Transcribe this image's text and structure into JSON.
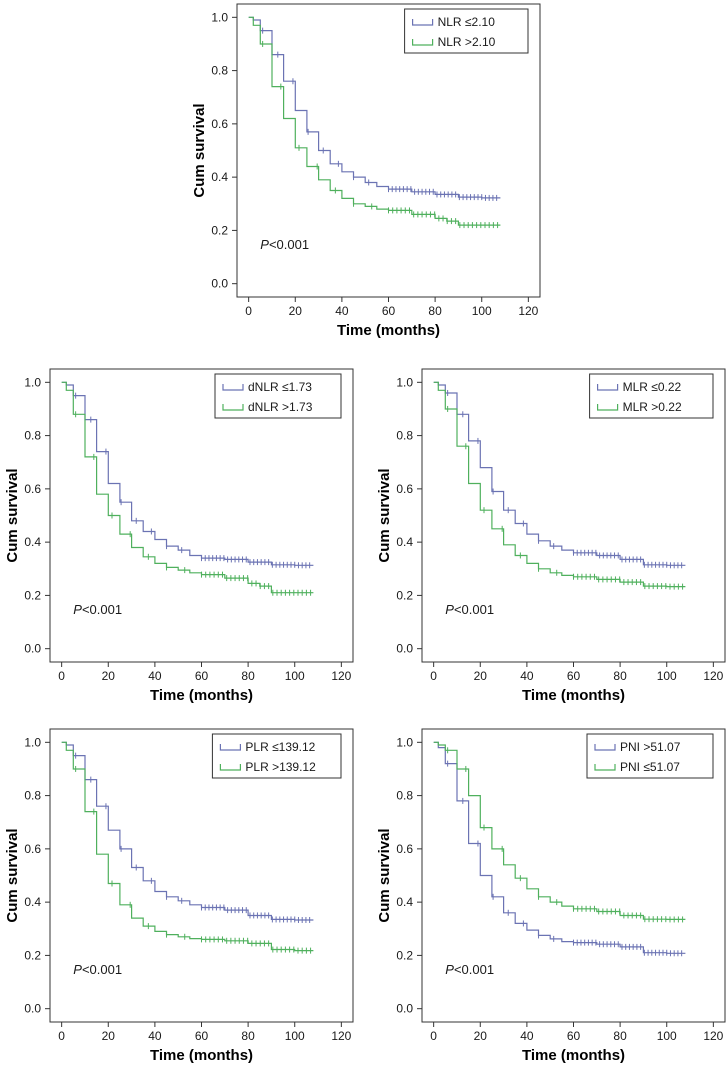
{
  "colors": {
    "group_a": "#6b73b3",
    "group_b": "#4fb05d",
    "frame": "#333333"
  },
  "chart_data": [
    {
      "type": "line",
      "subtype": "kaplan-meier",
      "ylabel": "Cum survival",
      "xlabel": "Time (months)",
      "xlim": [
        -5,
        125
      ],
      "ylim": [
        -0.05,
        1.05
      ],
      "xticks": [
        "0",
        "20",
        "40",
        "60",
        "80",
        "100",
        "120"
      ],
      "yticks": [
        "0.0",
        "0.2",
        "0.4",
        "0.6",
        "0.8",
        "1.0"
      ],
      "annotation": {
        "p_symbol": "P",
        "p_rest": "<0.001"
      },
      "series": [
        {
          "name": "NLR ≤2.10",
          "color": "#6b73b3",
          "points": [
            [
              0,
              1
            ],
            [
              2,
              0.99
            ],
            [
              5,
              0.95
            ],
            [
              10,
              0.86
            ],
            [
              15,
              0.76
            ],
            [
              20,
              0.65
            ],
            [
              25,
              0.57
            ],
            [
              30,
              0.5
            ],
            [
              35,
              0.45
            ],
            [
              40,
              0.42
            ],
            [
              45,
              0.4
            ],
            [
              50,
              0.38
            ],
            [
              55,
              0.365
            ],
            [
              60,
              0.355
            ],
            [
              70,
              0.345
            ],
            [
              80,
              0.335
            ],
            [
              90,
              0.325
            ],
            [
              100,
              0.322
            ],
            [
              108,
              0.322
            ]
          ]
        },
        {
          "name": "NLR >2.10",
          "color": "#4fb05d",
          "points": [
            [
              0,
              1
            ],
            [
              2,
              0.97
            ],
            [
              5,
              0.9
            ],
            [
              10,
              0.74
            ],
            [
              15,
              0.62
            ],
            [
              20,
              0.51
            ],
            [
              25,
              0.44
            ],
            [
              30,
              0.39
            ],
            [
              35,
              0.35
            ],
            [
              40,
              0.32
            ],
            [
              45,
              0.3
            ],
            [
              50,
              0.29
            ],
            [
              55,
              0.28
            ],
            [
              60,
              0.275
            ],
            [
              70,
              0.26
            ],
            [
              80,
              0.245
            ],
            [
              85,
              0.235
            ],
            [
              90,
              0.22
            ],
            [
              100,
              0.22
            ],
            [
              108,
              0.22
            ]
          ]
        }
      ]
    },
    {
      "type": "line",
      "subtype": "kaplan-meier",
      "ylabel": "Cum survival",
      "xlabel": "Time (months)",
      "xlim": [
        -5,
        125
      ],
      "ylim": [
        -0.05,
        1.05
      ],
      "xticks": [
        "0",
        "20",
        "40",
        "60",
        "80",
        "100",
        "120"
      ],
      "yticks": [
        "0.0",
        "0.2",
        "0.4",
        "0.6",
        "0.8",
        "1.0"
      ],
      "annotation": {
        "p_symbol": "P",
        "p_rest": "<0.001"
      },
      "series": [
        {
          "name": "dNLR ≤1.73",
          "color": "#6b73b3",
          "points": [
            [
              0,
              1
            ],
            [
              2,
              0.99
            ],
            [
              5,
              0.95
            ],
            [
              10,
              0.86
            ],
            [
              15,
              0.74
            ],
            [
              20,
              0.62
            ],
            [
              25,
              0.55
            ],
            [
              30,
              0.48
            ],
            [
              35,
              0.44
            ],
            [
              40,
              0.41
            ],
            [
              45,
              0.385
            ],
            [
              50,
              0.37
            ],
            [
              55,
              0.35
            ],
            [
              60,
              0.34
            ],
            [
              70,
              0.335
            ],
            [
              80,
              0.325
            ],
            [
              90,
              0.315
            ],
            [
              100,
              0.313
            ],
            [
              108,
              0.313
            ]
          ]
        },
        {
          "name": "dNLR >1.73",
          "color": "#4fb05d",
          "points": [
            [
              0,
              1
            ],
            [
              2,
              0.97
            ],
            [
              5,
              0.88
            ],
            [
              10,
              0.72
            ],
            [
              15,
              0.58
            ],
            [
              20,
              0.5
            ],
            [
              25,
              0.43
            ],
            [
              30,
              0.38
            ],
            [
              35,
              0.345
            ],
            [
              40,
              0.32
            ],
            [
              45,
              0.305
            ],
            [
              50,
              0.295
            ],
            [
              55,
              0.285
            ],
            [
              60,
              0.278
            ],
            [
              70,
              0.265
            ],
            [
              80,
              0.245
            ],
            [
              85,
              0.235
            ],
            [
              90,
              0.21
            ],
            [
              100,
              0.21
            ],
            [
              108,
              0.21
            ]
          ]
        }
      ]
    },
    {
      "type": "line",
      "subtype": "kaplan-meier",
      "ylabel": "Cum survival",
      "xlabel": "Time (months)",
      "xlim": [
        -5,
        125
      ],
      "ylim": [
        -0.05,
        1.05
      ],
      "xticks": [
        "0",
        "20",
        "40",
        "60",
        "80",
        "100",
        "120"
      ],
      "yticks": [
        "0.0",
        "0.2",
        "0.4",
        "0.6",
        "0.8",
        "1.0"
      ],
      "annotation": {
        "p_symbol": "P",
        "p_rest": "<0.001"
      },
      "series": [
        {
          "name": "MLR ≤0.22",
          "color": "#6b73b3",
          "points": [
            [
              0,
              1
            ],
            [
              2,
              0.99
            ],
            [
              5,
              0.96
            ],
            [
              10,
              0.88
            ],
            [
              15,
              0.78
            ],
            [
              20,
              0.68
            ],
            [
              25,
              0.59
            ],
            [
              30,
              0.52
            ],
            [
              35,
              0.47
            ],
            [
              40,
              0.43
            ],
            [
              45,
              0.405
            ],
            [
              50,
              0.385
            ],
            [
              55,
              0.37
            ],
            [
              60,
              0.36
            ],
            [
              70,
              0.35
            ],
            [
              80,
              0.335
            ],
            [
              90,
              0.315
            ],
            [
              100,
              0.313
            ],
            [
              108,
              0.313
            ]
          ]
        },
        {
          "name": "MLR >0.22",
          "color": "#4fb05d",
          "points": [
            [
              0,
              1
            ],
            [
              2,
              0.97
            ],
            [
              5,
              0.9
            ],
            [
              10,
              0.76
            ],
            [
              15,
              0.62
            ],
            [
              20,
              0.52
            ],
            [
              25,
              0.45
            ],
            [
              30,
              0.39
            ],
            [
              35,
              0.35
            ],
            [
              40,
              0.32
            ],
            [
              45,
              0.3
            ],
            [
              50,
              0.285
            ],
            [
              55,
              0.275
            ],
            [
              60,
              0.27
            ],
            [
              70,
              0.26
            ],
            [
              80,
              0.25
            ],
            [
              90,
              0.235
            ],
            [
              100,
              0.233
            ],
            [
              108,
              0.233
            ]
          ]
        }
      ]
    },
    {
      "type": "line",
      "subtype": "kaplan-meier",
      "ylabel": "Cum survival",
      "xlabel": "Time (months)",
      "xlim": [
        -5,
        125
      ],
      "ylim": [
        -0.05,
        1.05
      ],
      "xticks": [
        "0",
        "20",
        "40",
        "60",
        "80",
        "100",
        "120"
      ],
      "yticks": [
        "0.0",
        "0.2",
        "0.4",
        "0.6",
        "0.8",
        "1.0"
      ],
      "annotation": {
        "p_symbol": "P",
        "p_rest": "<0.001"
      },
      "series": [
        {
          "name": "PLR ≤139.12",
          "color": "#6b73b3",
          "points": [
            [
              0,
              1
            ],
            [
              2,
              0.99
            ],
            [
              5,
              0.95
            ],
            [
              10,
              0.86
            ],
            [
              15,
              0.76
            ],
            [
              20,
              0.67
            ],
            [
              25,
              0.6
            ],
            [
              30,
              0.53
            ],
            [
              35,
              0.48
            ],
            [
              40,
              0.44
            ],
            [
              45,
              0.42
            ],
            [
              50,
              0.405
            ],
            [
              55,
              0.39
            ],
            [
              60,
              0.38
            ],
            [
              70,
              0.37
            ],
            [
              80,
              0.35
            ],
            [
              90,
              0.335
            ],
            [
              100,
              0.333
            ],
            [
              108,
              0.333
            ]
          ]
        },
        {
          "name": "PLR >139.12",
          "color": "#4fb05d",
          "points": [
            [
              0,
              1
            ],
            [
              2,
              0.97
            ],
            [
              5,
              0.9
            ],
            [
              10,
              0.74
            ],
            [
              15,
              0.58
            ],
            [
              20,
              0.47
            ],
            [
              25,
              0.39
            ],
            [
              30,
              0.34
            ],
            [
              35,
              0.31
            ],
            [
              40,
              0.29
            ],
            [
              45,
              0.278
            ],
            [
              50,
              0.27
            ],
            [
              55,
              0.263
            ],
            [
              60,
              0.26
            ],
            [
              70,
              0.255
            ],
            [
              80,
              0.245
            ],
            [
              90,
              0.222
            ],
            [
              100,
              0.218
            ],
            [
              108,
              0.218
            ]
          ]
        }
      ]
    },
    {
      "type": "line",
      "subtype": "kaplan-meier",
      "ylabel": "Cum survival",
      "xlabel": "Time (months)",
      "xlim": [
        -5,
        125
      ],
      "ylim": [
        -0.05,
        1.05
      ],
      "xticks": [
        "0",
        "20",
        "40",
        "60",
        "80",
        "100",
        "120"
      ],
      "yticks": [
        "0.0",
        "0.2",
        "0.4",
        "0.6",
        "0.8",
        "1.0"
      ],
      "annotation": {
        "p_symbol": "P",
        "p_rest": "<0.001"
      },
      "series": [
        {
          "name": "PNI >51.07",
          "color": "#6b73b3",
          "points": [
            [
              0,
              1
            ],
            [
              2,
              0.98
            ],
            [
              5,
              0.92
            ],
            [
              10,
              0.78
            ],
            [
              15,
              0.62
            ],
            [
              20,
              0.5
            ],
            [
              25,
              0.42
            ],
            [
              30,
              0.36
            ],
            [
              35,
              0.32
            ],
            [
              40,
              0.295
            ],
            [
              45,
              0.275
            ],
            [
              50,
              0.262
            ],
            [
              55,
              0.252
            ],
            [
              60,
              0.248
            ],
            [
              70,
              0.242
            ],
            [
              80,
              0.232
            ],
            [
              90,
              0.21
            ],
            [
              100,
              0.208
            ],
            [
              108,
              0.208
            ]
          ]
        },
        {
          "name": "PNI ≤51.07",
          "color": "#4fb05d",
          "points": [
            [
              0,
              1
            ],
            [
              2,
              0.99
            ],
            [
              5,
              0.97
            ],
            [
              10,
              0.9
            ],
            [
              15,
              0.8
            ],
            [
              20,
              0.68
            ],
            [
              25,
              0.6
            ],
            [
              30,
              0.54
            ],
            [
              35,
              0.49
            ],
            [
              40,
              0.45
            ],
            [
              45,
              0.42
            ],
            [
              50,
              0.4
            ],
            [
              55,
              0.385
            ],
            [
              60,
              0.375
            ],
            [
              70,
              0.365
            ],
            [
              80,
              0.35
            ],
            [
              90,
              0.336
            ],
            [
              100,
              0.335
            ],
            [
              108,
              0.335
            ]
          ]
        }
      ]
    }
  ]
}
